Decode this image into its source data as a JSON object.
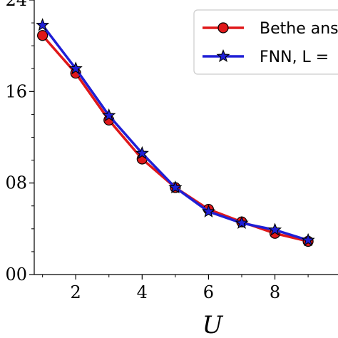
{
  "chart_data": {
    "type": "line",
    "xlabel": "U",
    "ylabel": "",
    "xlim": [
      0.75,
      9.9
    ],
    "ylim": [
      0.0,
      0.24
    ],
    "x_ticks": [
      2,
      4,
      6,
      8
    ],
    "x_tick_labels": [
      "2",
      "4",
      "6",
      "8"
    ],
    "y_ticks": [
      0.0,
      0.08,
      0.16,
      0.24
    ],
    "y_tick_labels": [
      "00",
      "08",
      "16",
      "24"
    ],
    "grid": false,
    "legend_position": "top-right",
    "x": [
      1,
      2,
      3,
      4,
      5,
      6,
      7,
      8,
      9
    ],
    "series": [
      {
        "name": "Bethe ans",
        "marker": "circle",
        "color": "#e0181a",
        "values": [
          0.209,
          0.176,
          0.135,
          0.101,
          0.076,
          0.057,
          0.046,
          0.036,
          0.029
        ]
      },
      {
        "name": "FNN, L =",
        "marker": "star",
        "color": "#1f1fd6",
        "values": [
          0.218,
          0.18,
          0.139,
          0.106,
          0.076,
          0.055,
          0.045,
          0.039,
          0.03
        ]
      }
    ]
  }
}
